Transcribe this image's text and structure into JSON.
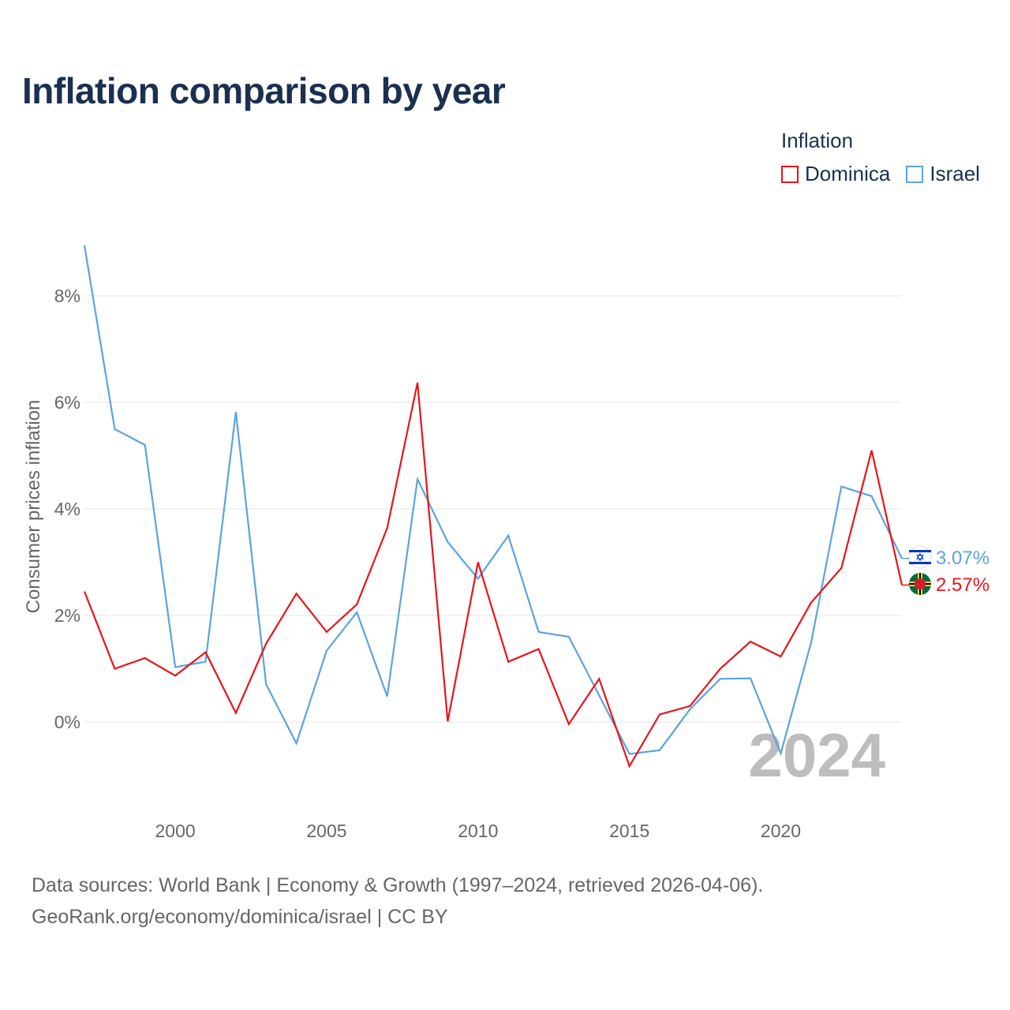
{
  "title": "Inflation comparison by year",
  "legend": {
    "title": "Inflation",
    "items": [
      {
        "label": "Dominica",
        "color": "#e8141c"
      },
      {
        "label": "Israel",
        "color": "#5ba3e0"
      }
    ]
  },
  "footer": {
    "line1": "Data sources: World Bank | Economy & Growth (1997–2024, retrieved 2026-04-06).",
    "line2": "GeoRank.org/economy/dominica/israel | CC BY"
  },
  "chart_data": {
    "type": "line",
    "title": "Inflation comparison by year",
    "ylabel": "Consumer prices inflation",
    "xlabel": "",
    "ylim": [
      -1.6,
      9.0
    ],
    "xlim": [
      1997,
      2024
    ],
    "yticks": [
      0,
      2,
      4,
      6,
      8
    ],
    "ytick_labels": [
      "0%",
      "2%",
      "4%",
      "6%",
      "8%"
    ],
    "xticks": [
      2000,
      2005,
      2010,
      2015,
      2020
    ],
    "xtick_labels": [
      "2000",
      "2005",
      "2010",
      "2015",
      "2020"
    ],
    "grid": true,
    "x": [
      1997,
      1998,
      1999,
      2000,
      2001,
      2002,
      2003,
      2004,
      2005,
      2006,
      2007,
      2008,
      2009,
      2010,
      2011,
      2012,
      2013,
      2014,
      2015,
      2016,
      2017,
      2018,
      2019,
      2020,
      2021,
      2022,
      2023,
      2024
    ],
    "series": [
      {
        "name": "Dominica",
        "color": "#e8141c",
        "end_label": "2.57%",
        "flag": "dominica-flag-icon",
        "values": [
          2.45,
          1.0,
          1.2,
          0.87,
          1.31,
          0.17,
          1.47,
          2.41,
          1.69,
          2.21,
          3.64,
          6.37,
          0.01,
          3.0,
          1.13,
          1.37,
          -0.04,
          0.81,
          -0.83,
          0.14,
          0.3,
          1.0,
          1.51,
          1.23,
          2.24,
          2.89,
          5.1,
          2.57
        ]
      },
      {
        "name": "Israel",
        "color": "#5ba3e0",
        "end_label": "3.07%",
        "flag": "israel-flag-icon",
        "values": [
          8.95,
          5.5,
          5.2,
          1.03,
          1.13,
          5.82,
          0.71,
          -0.4,
          1.34,
          2.06,
          0.48,
          4.56,
          3.38,
          2.69,
          3.5,
          1.69,
          1.6,
          0.5,
          -0.6,
          -0.53,
          0.24,
          0.81,
          0.82,
          -0.59,
          1.49,
          4.42,
          4.24,
          3.07
        ]
      }
    ],
    "annotation": "2024"
  }
}
